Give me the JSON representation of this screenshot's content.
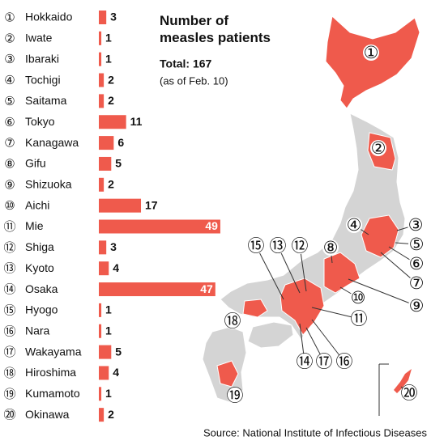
{
  "chart_data": {
    "type": "bar",
    "orientation": "horizontal",
    "title": "Number of measles patients",
    "total": "Total: 167",
    "subtitle": "(as of Feb. 10)",
    "source": "Source: National Institute of Infectious Diseases",
    "markers": [
      "①",
      "②",
      "③",
      "④",
      "⑤",
      "⑥",
      "⑦",
      "⑧",
      "⑨",
      "⑩",
      "⑪",
      "⑫",
      "⑬",
      "⑭",
      "⑮",
      "⑯",
      "⑰",
      "⑱",
      "⑲",
      "⑳"
    ],
    "categories": [
      "Hokkaido",
      "Iwate",
      "Ibaraki",
      "Tochigi",
      "Saitama",
      "Tokyo",
      "Kanagawa",
      "Gifu",
      "Shizuoka",
      "Aichi",
      "Mie",
      "Shiga",
      "Kyoto",
      "Osaka",
      "Hyogo",
      "Nara",
      "Wakayama",
      "Hiroshima",
      "Kumamoto",
      "Okinawa"
    ],
    "values": [
      3,
      1,
      1,
      2,
      2,
      11,
      6,
      5,
      2,
      17,
      49,
      3,
      4,
      47,
      1,
      1,
      5,
      4,
      1,
      2
    ],
    "color": "#ef5a4c"
  }
}
